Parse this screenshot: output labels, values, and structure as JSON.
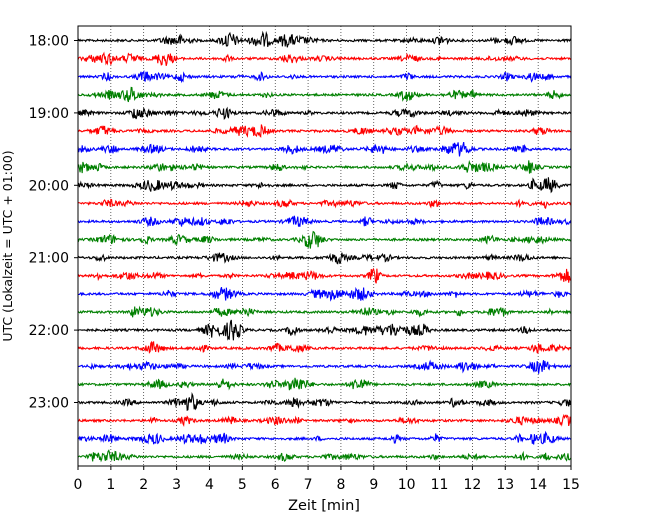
{
  "chart_data": {
    "type": "line",
    "xlabel": "Zeit  [min]",
    "ylabel": "UTC (Lokalzeit = UTC + 01:00)",
    "xlim": [
      0,
      15
    ],
    "x_ticks": [
      "0",
      "1",
      "2",
      "3",
      "4",
      "5",
      "6",
      "7",
      "8",
      "9",
      "10",
      "11",
      "12",
      "13",
      "14",
      "15"
    ],
    "y_ticks": [
      "18:00",
      "19:00",
      "20:00",
      "21:00",
      "22:00",
      "23:00"
    ],
    "grid": "vertical-dotted",
    "trace_interval_min": 15,
    "traces_per_hour": 4,
    "trace_count": 24,
    "colors": [
      "#000000",
      "#ff0000",
      "#0000ff",
      "#008000"
    ]
  }
}
